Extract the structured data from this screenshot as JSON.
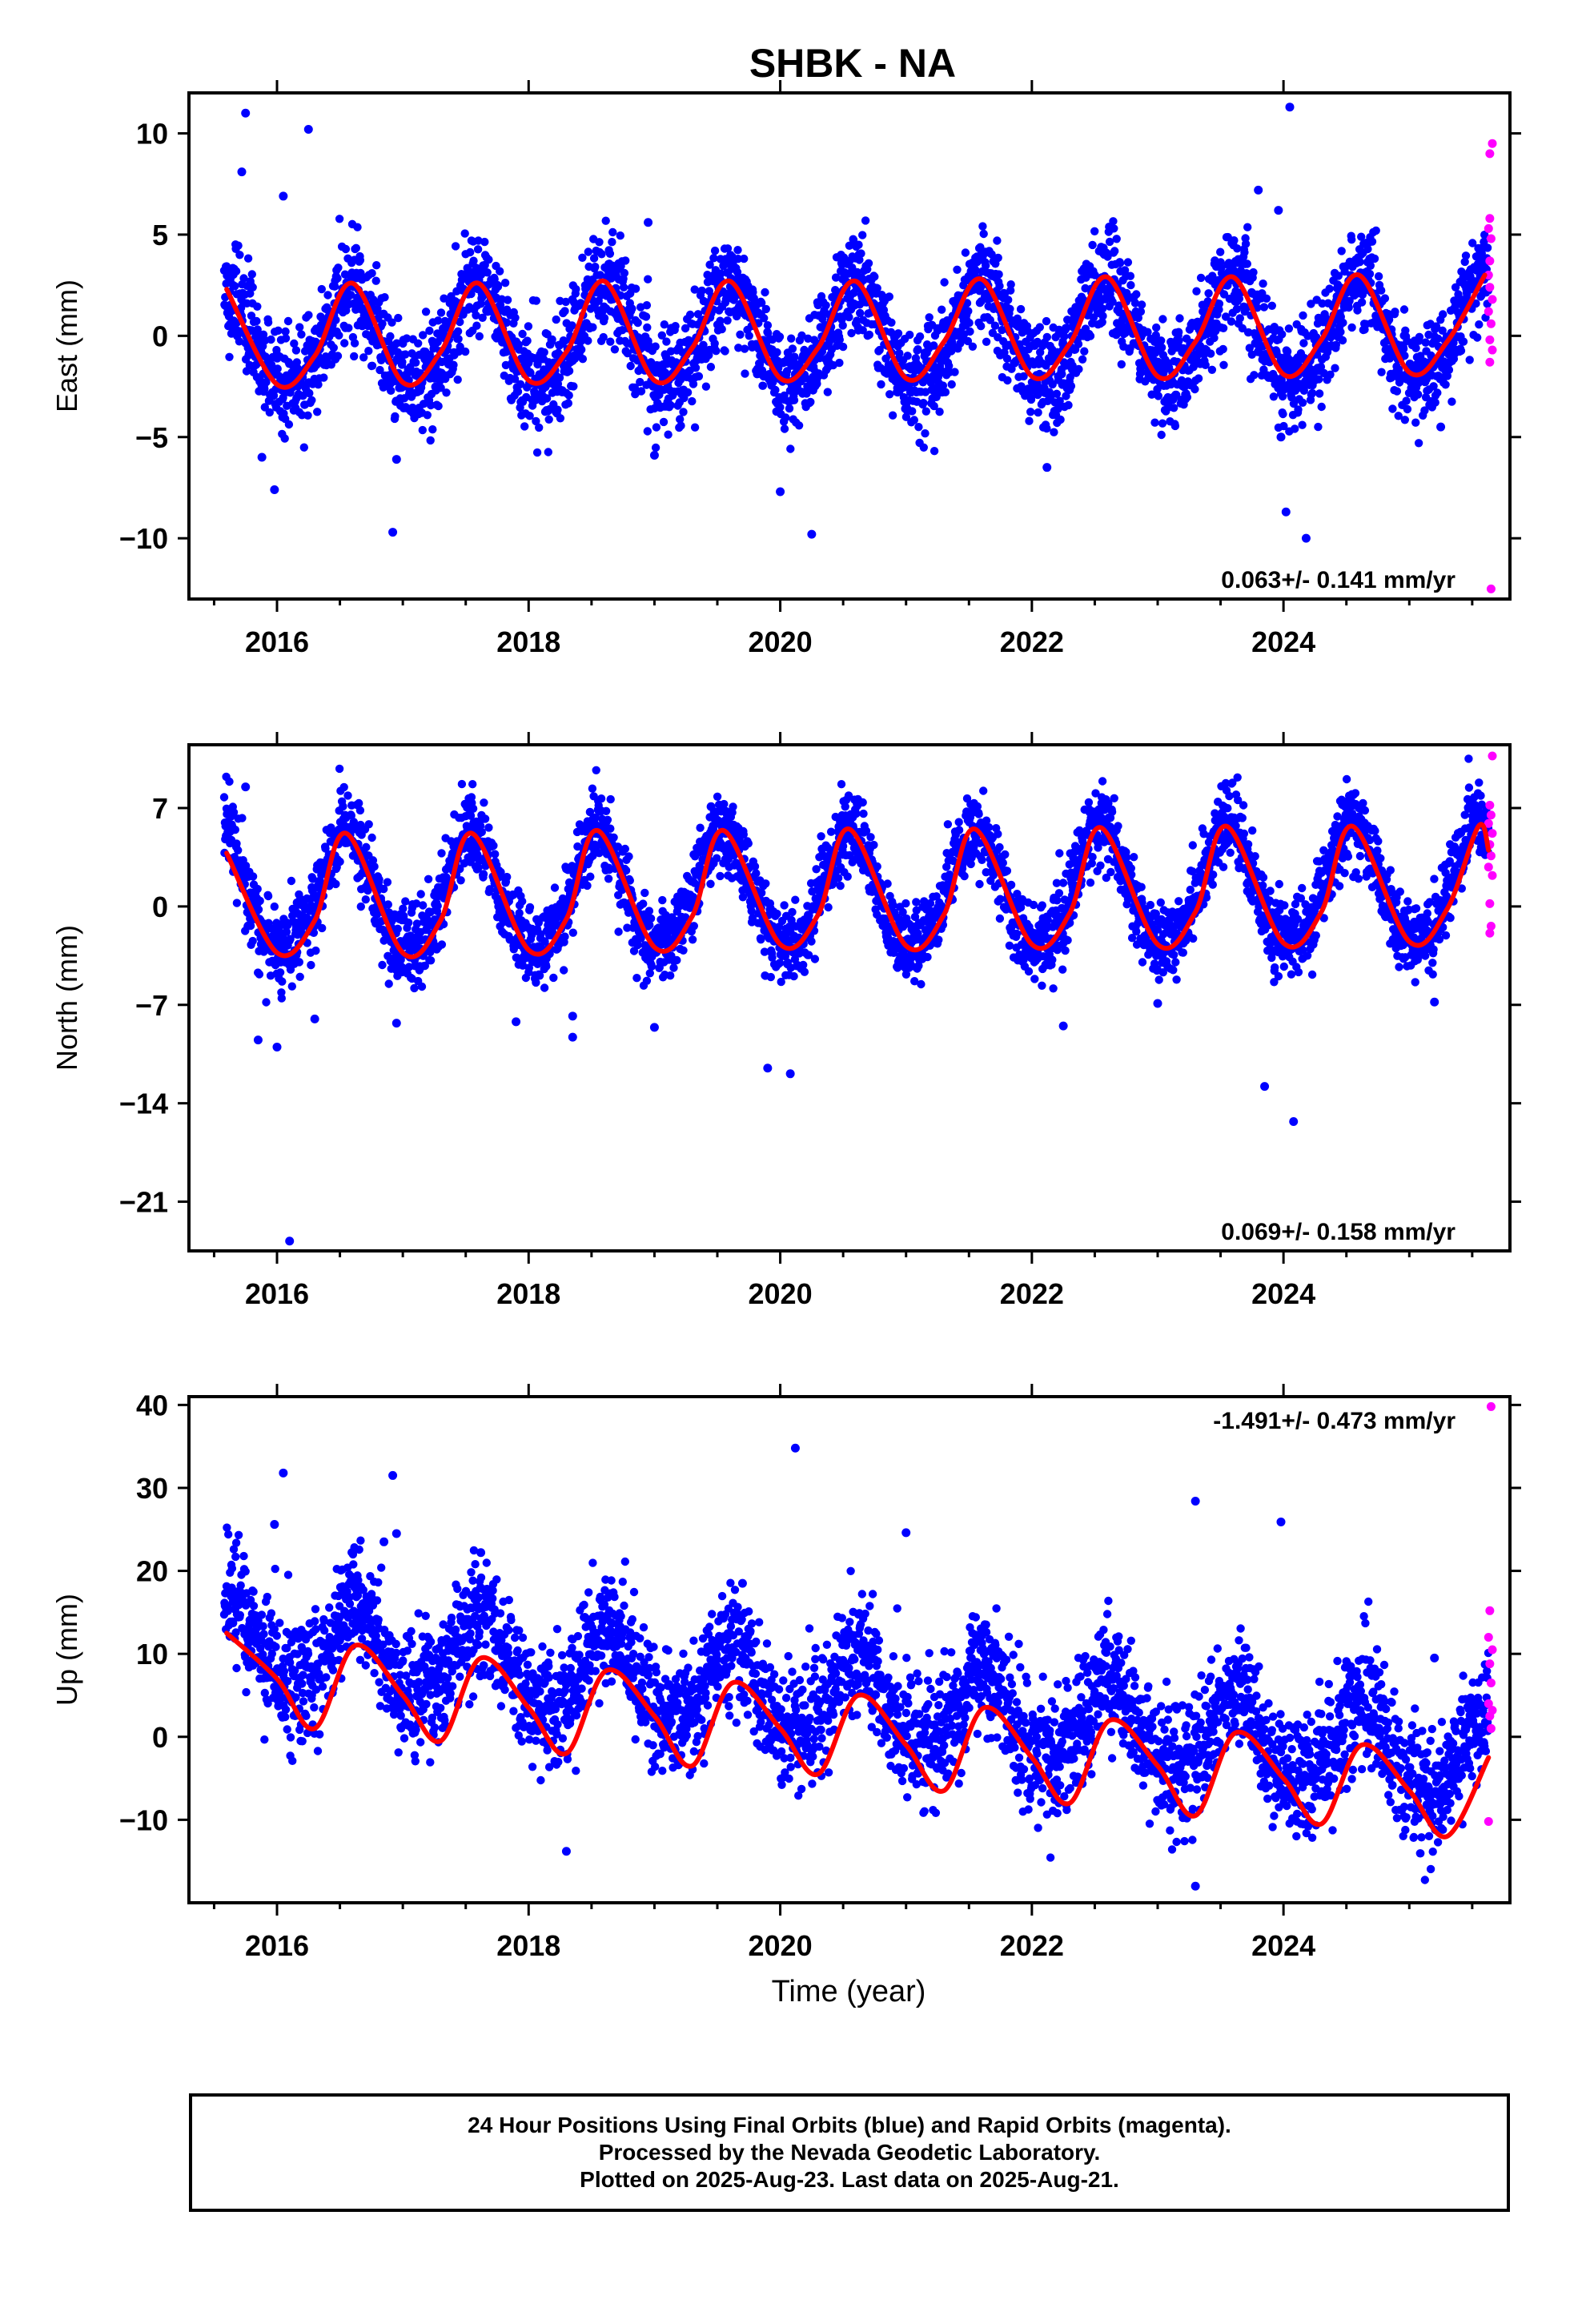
{
  "title": "SHBK - NA",
  "xlabel": "Time (year)",
  "colors": {
    "final": "#0000ff",
    "rapid": "#ff00ff",
    "fit": "#ff0000",
    "axes": "#000000"
  },
  "footer": {
    "line1": "24 Hour Positions Using Final Orbits (blue) and Rapid Orbits (magenta).",
    "line2": "Processed by the Nevada Geodetic Laboratory.",
    "line3": "Plotted on 2025-Aug-23. Last data on 2025-Aug-21."
  },
  "chart_data": [
    {
      "type": "scatter",
      "ylabel": "East (mm)",
      "xlim": [
        2015.3,
        2025.8
      ],
      "ylim": [
        -13,
        12
      ],
      "x_ticks": [
        2016,
        2018,
        2020,
        2022,
        2024
      ],
      "y_ticks": [
        -10,
        -5,
        0,
        5,
        10
      ],
      "rate_label": "0.063+/- 0.141 mm/yr",
      "rate_position": "bottom-right",
      "model": {
        "start": 2015.58,
        "end": 2025.63,
        "trend": 0.063,
        "offset": 0.0,
        "amplitude": 2.45,
        "phase_year": 2016.6,
        "noise": 1.25,
        "semi_annual": 0.25
      },
      "fit_curve": {
        "x": [
          2015.6,
          2016.0,
          2016.3,
          2016.6,
          2017.0,
          2017.3,
          2017.6,
          2018.0,
          2018.3,
          2018.6,
          2019.0,
          2019.3,
          2019.6,
          2020.0,
          2020.3,
          2020.6,
          2021.0,
          2021.3,
          2021.6,
          2022.0,
          2022.3,
          2022.6,
          2023.0,
          2023.3,
          2023.6,
          2024.0,
          2024.3,
          2024.6,
          2025.0,
          2025.3,
          2025.6
        ],
        "y": [
          2.3,
          -2.4,
          -1.0,
          2.6,
          -2.3,
          -0.8,
          2.6,
          -2.2,
          -0.8,
          2.7,
          -2.2,
          -0.6,
          2.7,
          -2.1,
          -0.6,
          2.7,
          -2.1,
          -0.3,
          2.8,
          -2.0,
          -0.4,
          2.9,
          -2.0,
          -0.3,
          2.9,
          -1.9,
          -0.2,
          3.0,
          -1.8,
          -0.3,
          3.0
        ]
      },
      "outliers": [
        {
          "x": 2015.75,
          "y": 11.0
        },
        {
          "x": 2015.72,
          "y": 8.1
        },
        {
          "x": 2016.05,
          "y": 6.9
        },
        {
          "x": 2016.25,
          "y": 10.2
        },
        {
          "x": 2015.88,
          "y": -6.0
        },
        {
          "x": 2015.98,
          "y": -7.6
        },
        {
          "x": 2016.92,
          "y": -9.7
        },
        {
          "x": 2016.95,
          "y": -6.1
        },
        {
          "x": 2018.95,
          "y": 5.6
        },
        {
          "x": 2019.0,
          "y": -5.9
        },
        {
          "x": 2020.0,
          "y": -7.7
        },
        {
          "x": 2020.25,
          "y": -9.8
        },
        {
          "x": 2022.12,
          "y": -6.5
        },
        {
          "x": 2023.8,
          "y": 7.2
        },
        {
          "x": 2023.96,
          "y": 6.2
        },
        {
          "x": 2024.05,
          "y": 11.3
        },
        {
          "x": 2023.98,
          "y": -5.0
        },
        {
          "x": 2024.02,
          "y": -8.7
        },
        {
          "x": 2024.18,
          "y": -10.0
        },
        {
          "x": 2025.25,
          "y": -4.5
        }
      ],
      "rapid": [
        {
          "x": 2025.66,
          "y": 9.5
        },
        {
          "x": 2025.64,
          "y": 9.0
        },
        {
          "x": 2025.64,
          "y": 5.8
        },
        {
          "x": 2025.63,
          "y": 5.3
        },
        {
          "x": 2025.65,
          "y": 4.8
        },
        {
          "x": 2025.64,
          "y": 3.7
        },
        {
          "x": 2025.63,
          "y": 3.0
        },
        {
          "x": 2025.64,
          "y": 2.4
        },
        {
          "x": 2025.66,
          "y": 1.8
        },
        {
          "x": 2025.63,
          "y": 1.2
        },
        {
          "x": 2025.65,
          "y": 0.6
        },
        {
          "x": 2025.64,
          "y": -0.2
        },
        {
          "x": 2025.66,
          "y": -0.7
        },
        {
          "x": 2025.64,
          "y": -1.3
        },
        {
          "x": 2025.65,
          "y": -12.5
        }
      ]
    },
    {
      "type": "scatter",
      "ylabel": "North (mm)",
      "xlim": [
        2015.3,
        2025.8
      ],
      "ylim": [
        -24.5,
        11.5
      ],
      "x_ticks": [
        2016,
        2018,
        2020,
        2022,
        2024
      ],
      "y_ticks": [
        -21,
        -14,
        -7,
        0,
        7
      ],
      "rate_label": "0.069+/- 0.158 mm/yr",
      "rate_position": "bottom-right",
      "model": {
        "start": 2015.58,
        "end": 2025.63,
        "trend": 0.069,
        "offset": 1.0,
        "amplitude": 4.2,
        "phase_year": 2016.55,
        "noise": 1.4,
        "semi_annual": 0.4
      },
      "fit_curve": {
        "x": [
          2015.6,
          2016.0,
          2016.3,
          2016.55,
          2017.0,
          2017.3,
          2017.55,
          2018.0,
          2018.3,
          2018.55,
          2019.0,
          2019.3,
          2019.55,
          2020.0,
          2020.3,
          2020.55,
          2021.0,
          2021.3,
          2021.55,
          2022.0,
          2022.3,
          2022.55,
          2023.0,
          2023.3,
          2023.55,
          2024.0,
          2024.3,
          2024.55,
          2025.0,
          2025.3,
          2025.55,
          2025.63
        ],
        "y": [
          3.8,
          -3.3,
          -1.0,
          5.2,
          -3.3,
          -1.0,
          5.2,
          -3.1,
          -0.9,
          5.4,
          -2.9,
          -0.7,
          5.4,
          -2.7,
          -0.6,
          5.5,
          -2.8,
          -0.6,
          5.5,
          -2.7,
          -0.5,
          5.6,
          -2.7,
          -0.4,
          5.7,
          -2.6,
          -0.4,
          5.7,
          -2.5,
          -0.2,
          5.7,
          4.0
        ]
      },
      "outliers": [
        {
          "x": 2015.75,
          "y": 8.5
        },
        {
          "x": 2015.85,
          "y": -9.5
        },
        {
          "x": 2016.0,
          "y": -10.0
        },
        {
          "x": 2016.3,
          "y": -8.0
        },
        {
          "x": 2016.95,
          "y": -8.3
        },
        {
          "x": 2017.9,
          "y": -8.2
        },
        {
          "x": 2018.35,
          "y": -7.8
        },
        {
          "x": 2018.35,
          "y": -9.3
        },
        {
          "x": 2019.0,
          "y": -8.6
        },
        {
          "x": 2019.9,
          "y": -11.5
        },
        {
          "x": 2020.08,
          "y": -11.9
        },
        {
          "x": 2016.1,
          "y": -23.8
        },
        {
          "x": 2023.85,
          "y": -12.8
        },
        {
          "x": 2024.08,
          "y": -15.3
        },
        {
          "x": 2023.0,
          "y": -6.9
        },
        {
          "x": 2025.2,
          "y": -6.8
        },
        {
          "x": 2022.25,
          "y": -8.5
        },
        {
          "x": 2019.45,
          "y": 7.1
        }
      ],
      "rapid": [
        {
          "x": 2025.66,
          "y": 10.7
        },
        {
          "x": 2025.64,
          "y": 7.2
        },
        {
          "x": 2025.65,
          "y": 6.5
        },
        {
          "x": 2025.63,
          "y": 5.9
        },
        {
          "x": 2025.66,
          "y": 5.2
        },
        {
          "x": 2025.64,
          "y": 4.4
        },
        {
          "x": 2025.65,
          "y": 3.6
        },
        {
          "x": 2025.63,
          "y": 2.8
        },
        {
          "x": 2025.66,
          "y": 2.2
        },
        {
          "x": 2025.64,
          "y": 0.2
        },
        {
          "x": 2025.65,
          "y": -1.4
        },
        {
          "x": 2025.64,
          "y": -1.9
        }
      ]
    },
    {
      "type": "scatter",
      "ylabel": "Up (mm)",
      "xlim": [
        2015.3,
        2025.8
      ],
      "ylim": [
        -20,
        41
      ],
      "x_ticks": [
        2016,
        2018,
        2020,
        2022,
        2024
      ],
      "y_ticks": [
        -10,
        0,
        10,
        20,
        30,
        40
      ],
      "rate_label": "-1.491+/- 0.473 mm/yr",
      "rate_position": "top-right",
      "model": {
        "start": 2015.58,
        "end": 2025.63,
        "trend": -1.491,
        "offset": 4.5,
        "amplitude": 5.0,
        "phase_year": 2016.62,
        "noise": 3.6,
        "semi_annual": 1.0
      },
      "fit_curve": {
        "x": [
          2015.6,
          2016.0,
          2016.3,
          2016.62,
          2017.0,
          2017.3,
          2017.62,
          2018.0,
          2018.3,
          2018.62,
          2019.0,
          2019.3,
          2019.62,
          2020.0,
          2020.3,
          2020.62,
          2021.0,
          2021.3,
          2021.62,
          2022.0,
          2022.3,
          2022.62,
          2023.0,
          2023.3,
          2023.62,
          2024.0,
          2024.3,
          2024.62,
          2025.0,
          2025.3,
          2025.63
        ],
        "y": [
          12.5,
          7.0,
          1.0,
          11.0,
          5.0,
          -0.5,
          9.5,
          3.5,
          -2.0,
          8.0,
          2.5,
          -3.5,
          6.5,
          1.0,
          -4.5,
          5.0,
          -1.0,
          -6.5,
          3.5,
          -2.5,
          -8.0,
          2.0,
          -3.5,
          -9.5,
          0.5,
          -5.0,
          -10.5,
          -1.0,
          -6.5,
          -12.0,
          -2.5
        ]
      },
      "outliers": [
        {
          "x": 2016.05,
          "y": 31.8
        },
        {
          "x": 2015.98,
          "y": 25.6
        },
        {
          "x": 2016.92,
          "y": 31.5
        },
        {
          "x": 2016.95,
          "y": 24.5
        },
        {
          "x": 2017.62,
          "y": 22.2
        },
        {
          "x": 2018.3,
          "y": -13.8
        },
        {
          "x": 2019.7,
          "y": 18.5
        },
        {
          "x": 2020.12,
          "y": 34.8
        },
        {
          "x": 2021.0,
          "y": 24.6
        },
        {
          "x": 2023.3,
          "y": 28.4
        },
        {
          "x": 2023.98,
          "y": 25.9
        },
        {
          "x": 2023.3,
          "y": -18.0
        },
        {
          "x": 2025.2,
          "y": 9.5
        },
        {
          "x": 2016.85,
          "y": 23.5
        }
      ],
      "rapid": [
        {
          "x": 2025.65,
          "y": 39.8
        },
        {
          "x": 2025.64,
          "y": 15.2
        },
        {
          "x": 2025.63,
          "y": 12.0
        },
        {
          "x": 2025.66,
          "y": 10.5
        },
        {
          "x": 2025.64,
          "y": 8.8
        },
        {
          "x": 2025.65,
          "y": 6.5
        },
        {
          "x": 2025.63,
          "y": 4.0
        },
        {
          "x": 2025.66,
          "y": 3.2
        },
        {
          "x": 2025.64,
          "y": 2.5
        },
        {
          "x": 2025.65,
          "y": 1.0
        },
        {
          "x": 2025.63,
          "y": -10.2
        }
      ]
    }
  ]
}
